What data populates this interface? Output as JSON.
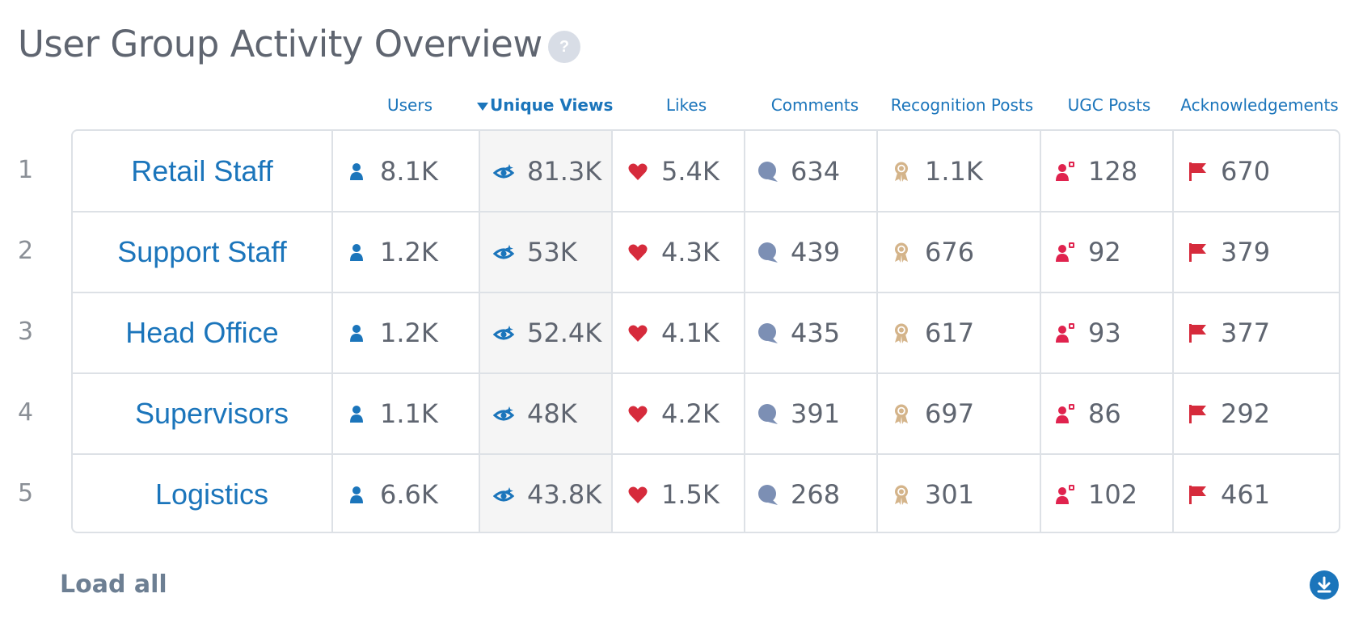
{
  "title": "User Group Activity Overview",
  "help_label": "?",
  "columns": {
    "users": "Users",
    "views": "Unique Views",
    "likes": "Likes",
    "comments": "Comments",
    "recognition": "Recognition Posts",
    "ugc": "UGC Posts",
    "acks": "Acknowledgements"
  },
  "sort": {
    "column": "views",
    "direction": "descending"
  },
  "colors": {
    "link": "#1b75bb",
    "heart": "#d62b3c",
    "comment": "#7c8fb4",
    "badge": "#d4b48a",
    "ugc": "#e0234e",
    "flag": "#d62b3c"
  },
  "icons": {
    "users": "user-icon",
    "views": "eye-icon",
    "likes": "heart-icon",
    "comments": "comment-icon",
    "recognition": "award-icon",
    "ugc": "ugc-user-icon",
    "acks": "flag-icon"
  },
  "rows": [
    {
      "rank": "1",
      "name": "Retail Staff",
      "users": "8.1K",
      "views": "81.3K",
      "likes": "5.4K",
      "comments": "634",
      "recognition": "1.1K",
      "ugc": "128",
      "acks": "670"
    },
    {
      "rank": "2",
      "name": "Support Staff",
      "users": "1.2K",
      "views": "53K",
      "likes": "4.3K",
      "comments": "439",
      "recognition": "676",
      "ugc": "92",
      "acks": "379"
    },
    {
      "rank": "3",
      "name": "Head Office",
      "users": "1.2K",
      "views": "52.4K",
      "likes": "4.1K",
      "comments": "435",
      "recognition": "617",
      "ugc": "93",
      "acks": "377"
    },
    {
      "rank": "4",
      "name": "Supervisors",
      "users": "1.1K",
      "views": "48K",
      "likes": "4.2K",
      "comments": "391",
      "recognition": "697",
      "ugc": "86",
      "acks": "292"
    },
    {
      "rank": "5",
      "name": "Logistics",
      "users": "6.6K",
      "views": "43.8K",
      "likes": "1.5K",
      "comments": "268",
      "recognition": "301",
      "ugc": "102",
      "acks": "461"
    }
  ],
  "load_all_label": "Load all",
  "download_icon": "download-icon"
}
